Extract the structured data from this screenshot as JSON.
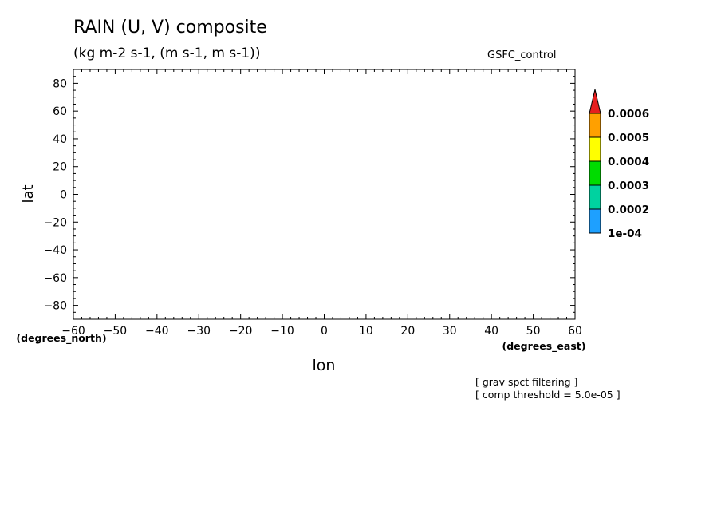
{
  "title": "RAIN (U, V) composite",
  "subtitle": "(kg m-2 s-1, (m s-1, m s-1))",
  "run_label": "GSFC_control",
  "notes": [
    "[ grav spct filtering ]",
    "[ comp threshold = 5.0e-05 ]"
  ],
  "chart_data": {
    "type": "heatmap",
    "title": "RAIN (U, V) composite",
    "subtitle": "(kg m-2 s-1, (m s-1, m s-1))",
    "xlabel": "lon",
    "ylabel": "lat",
    "x_units": "(degrees_east)",
    "y_units": "(degrees_north)",
    "xlim": [
      -60,
      60
    ],
    "ylim": [
      -90,
      90
    ],
    "x_ticks": [
      -60,
      -50,
      -40,
      -30,
      -20,
      -10,
      0,
      10,
      20,
      30,
      40,
      50,
      60
    ],
    "y_ticks": [
      -80,
      -60,
      -40,
      -20,
      0,
      20,
      40,
      60,
      80
    ],
    "grid": false,
    "data": [],
    "colorbar": {
      "labels": [
        "1e-04",
        "0.0002",
        "0.0003",
        "0.0004",
        "0.0005",
        "0.0006"
      ],
      "levels": [
        0.0001,
        0.0002,
        0.0003,
        0.0004,
        0.0005,
        0.0006
      ],
      "colors": [
        "#1ea0ff",
        "#00d2a0",
        "#00dc00",
        "#ffff00",
        "#ffa000",
        "#e61e1e"
      ]
    }
  }
}
